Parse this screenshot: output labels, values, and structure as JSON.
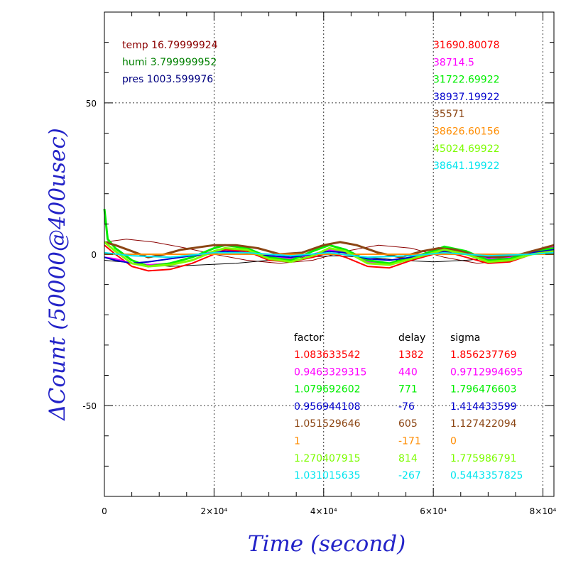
{
  "chart_data": {
    "type": "line",
    "xlabel": "Time (second)",
    "ylabel": "ΔCount (50000@400usec)",
    "xlim": [
      0,
      82000
    ],
    "ylim": [
      -80,
      80
    ],
    "grid": true,
    "x_ticks": [
      {
        "value": 0,
        "label": "0"
      },
      {
        "value": 20000,
        "label": "2×10⁴"
      },
      {
        "value": 40000,
        "label": "4×10⁴"
      },
      {
        "value": 60000,
        "label": "6×10⁴"
      },
      {
        "value": 80000,
        "label": "8×10⁴"
      }
    ],
    "y_ticks": [
      {
        "value": -50,
        "label": "-50"
      },
      {
        "value": 0,
        "label": "0"
      },
      {
        "value": 50,
        "label": "50"
      }
    ],
    "environment": [
      {
        "text": "temp 16.79999924",
        "color": "#8b0000"
      },
      {
        "text": "humi 3.799999952",
        "color": "#008000"
      },
      {
        "text": "pres 1003.599976",
        "color": "#000080"
      }
    ],
    "table_headers": {
      "factor": "factor",
      "delay": "delay",
      "sigma": "sigma"
    },
    "series": [
      {
        "top_value": "31690.80078",
        "factor": "1.083633542",
        "delay": "1382",
        "sigma": "1.856237769",
        "color": "#ff0000",
        "x": [
          0,
          2000,
          5000,
          8000,
          12000,
          16000,
          20000,
          22000,
          26000,
          30000,
          34000,
          38000,
          41000,
          44000,
          48000,
          52000,
          56000,
          60000,
          62000,
          66000,
          70000,
          74000,
          78000,
          82000
        ],
        "y": [
          3,
          0,
          -4,
          -5.5,
          -5,
          -3,
          0,
          1.5,
          1,
          -2,
          -2.5,
          -1,
          0.5,
          -1,
          -4,
          -4.5,
          -2,
          0,
          1,
          -1,
          -3,
          -2.5,
          0,
          1.5
        ]
      },
      {
        "top_value": "38714.5",
        "factor": "0.9463329315",
        "delay": "440",
        "sigma": "0.9712994695",
        "color": "#ff00ff",
        "x": [
          0,
          2000,
          5000,
          8000,
          12000,
          16000,
          20000,
          22000,
          26000,
          30000,
          34000,
          38000,
          41000,
          44000,
          48000,
          52000,
          56000,
          60000,
          62000,
          66000,
          70000,
          74000,
          78000,
          82000
        ],
        "y": [
          -1,
          -1.5,
          -3,
          -3.5,
          -3,
          -1,
          1,
          2,
          1.5,
          -0.5,
          -1.5,
          0,
          1.5,
          0.5,
          -2.5,
          -3,
          -1,
          1,
          2,
          0.5,
          -1.5,
          -1,
          1,
          2.5
        ]
      },
      {
        "top_value": "31722.69922",
        "factor": "1.079692602",
        "delay": "771",
        "sigma": "1.796476603",
        "color": "#00ee00",
        "x": [
          0,
          600,
          2000,
          5000,
          8000,
          12000,
          16000,
          20000,
          22000,
          26000,
          30000,
          34000,
          38000,
          41000,
          44000,
          48000,
          52000,
          56000,
          60000,
          62000,
          66000,
          70000,
          74000,
          78000,
          82000
        ],
        "y": [
          15,
          5,
          2,
          -2,
          -4,
          -3,
          -1,
          2,
          3,
          2,
          -1,
          -2,
          1,
          3,
          1.5,
          -2,
          -3,
          -1,
          1,
          2.5,
          1,
          -2,
          -1.5,
          1,
          2
        ]
      },
      {
        "top_value": "38937.19922",
        "factor": "0.956944108",
        "delay": "-76",
        "sigma": "1.414433599",
        "color": "#0000cd",
        "x": [
          0,
          2000,
          5000,
          8000,
          12000,
          16000,
          20000,
          22000,
          26000,
          30000,
          34000,
          38000,
          41000,
          44000,
          48000,
          52000,
          56000,
          60000,
          62000,
          66000,
          70000,
          74000,
          78000,
          82000
        ],
        "y": [
          -1,
          -2,
          -3,
          -2.5,
          -1.5,
          -0.5,
          0.5,
          1,
          0.5,
          -0.5,
          -1,
          0,
          1,
          0.5,
          -1.5,
          -2,
          -1,
          0.5,
          1,
          0.5,
          -1,
          -0.5,
          0.5,
          1.5
        ]
      },
      {
        "top_value": "35571",
        "factor": "1.051529646",
        "delay": "605",
        "sigma": "1.127422094",
        "color": "#8b4513",
        "x": [
          0,
          2000,
          5000,
          8000,
          11000,
          14000,
          18000,
          20000,
          24000,
          28000,
          32000,
          36000,
          40000,
          43000,
          46000,
          50000,
          54000,
          58000,
          61000,
          64000,
          68000,
          72000,
          76000,
          80000,
          82000
        ],
        "y": [
          4,
          3,
          1,
          -1,
          0,
          1.5,
          2.5,
          3,
          3,
          2,
          0,
          0.5,
          3,
          4,
          3,
          0.5,
          -1,
          1,
          2,
          1.5,
          -0.5,
          -1,
          0,
          2,
          3
        ]
      },
      {
        "top_value": "38626.60156",
        "factor": "1",
        "delay": "-171",
        "sigma": "0",
        "color": "#ff8c00",
        "x": [
          0,
          5000,
          10000,
          20000,
          30000,
          40000,
          50000,
          60000,
          70000,
          82000
        ],
        "y": [
          0,
          0,
          0,
          0,
          0,
          0,
          0,
          0,
          0,
          0
        ]
      },
      {
        "top_value": "45024.69922",
        "factor": "1.270407915",
        "delay": "814",
        "sigma": "1.775986791",
        "color": "#7cfc00",
        "x": [
          0,
          2000,
          5000,
          8000,
          12000,
          16000,
          20000,
          22000,
          26000,
          30000,
          34000,
          38000,
          41000,
          44000,
          48000,
          52000,
          56000,
          60000,
          62000,
          66000,
          70000,
          74000,
          78000,
          82000
        ],
        "y": [
          4,
          1,
          -3,
          -4,
          -3.5,
          -2,
          1,
          2,
          1.5,
          -1.5,
          -2.5,
          -0.5,
          2,
          1,
          -3,
          -3.5,
          -1.5,
          0.5,
          1.5,
          0,
          -2.5,
          -2,
          0,
          1
        ]
      },
      {
        "top_value": "38641.19922",
        "factor": "1.031015635",
        "delay": "-267",
        "sigma": "0.5443357825",
        "color": "#00e5ee",
        "x": [
          0,
          5000,
          12000,
          20000,
          26000,
          34000,
          41000,
          48000,
          56000,
          62000,
          70000,
          78000,
          82000
        ],
        "y": [
          0.5,
          -0.5,
          -1,
          0.5,
          0.5,
          -0.5,
          0.5,
          -1,
          -0.5,
          0.5,
          -0.5,
          0,
          0.5
        ]
      }
    ],
    "auxiliary": [
      {
        "color": "#8b0000",
        "x": [
          0,
          4000,
          9000,
          15000,
          20000,
          26000,
          32000,
          38000,
          44000,
          50000,
          56000,
          62000,
          68000,
          74000,
          80000,
          82000
        ],
        "y": [
          4,
          5,
          4,
          2,
          0,
          -2,
          -3,
          -2,
          1,
          3,
          2,
          -1,
          -3,
          -2,
          1,
          2
        ]
      },
      {
        "color": "#000000",
        "x": [
          0,
          6000,
          12000,
          18000,
          24000,
          30000,
          36000,
          42000,
          48000,
          54000,
          60000,
          66000,
          72000,
          78000,
          82000
        ],
        "y": [
          -2,
          -3,
          -4,
          -3.5,
          -3,
          -2,
          -1,
          -0.5,
          -1,
          -2,
          -2.5,
          -2,
          -1,
          0,
          1
        ]
      }
    ]
  }
}
